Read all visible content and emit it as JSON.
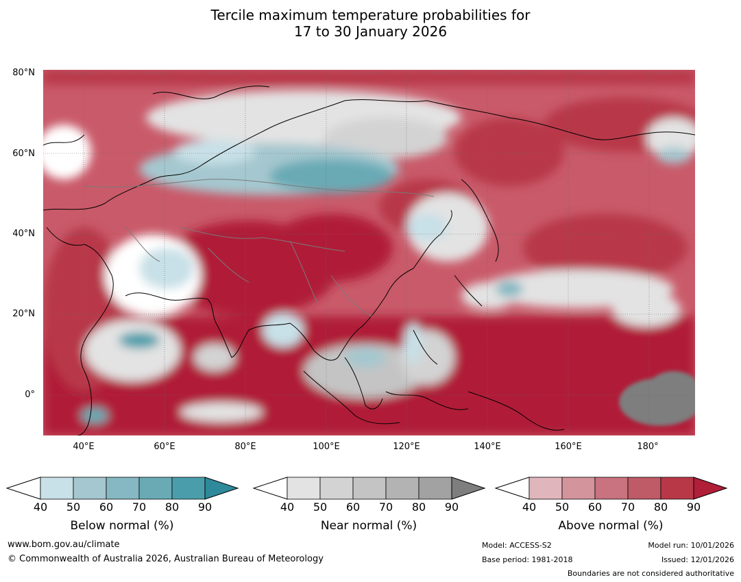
{
  "title": {
    "line1": "Tercile maximum temperature probabilities for",
    "line2": "17 to 30 January 2026"
  },
  "map": {
    "lat_labels": [
      "80°N",
      "60°N",
      "40°N",
      "20°N",
      "0°"
    ],
    "lon_labels": [
      "40°E",
      "60°E",
      "80°E",
      "100°E",
      "120°E",
      "140°E",
      "160°E",
      "180°"
    ],
    "extent": {
      "lon_min": 30,
      "lon_max": 191,
      "lat_min": -10,
      "lat_max": 80
    }
  },
  "colorbars": [
    {
      "name": "below",
      "title": "Below normal (%)",
      "ticks": [
        "40",
        "50",
        "60",
        "70",
        "80",
        "90"
      ],
      "colors": [
        "#c8e0e7",
        "#a5c7cf",
        "#85b8c2",
        "#69aab5",
        "#4a9eab",
        "#2e8a9a"
      ]
    },
    {
      "name": "near",
      "title": "Near normal (%)",
      "ticks": [
        "40",
        "50",
        "60",
        "70",
        "80",
        "90"
      ],
      "colors": [
        "#e3e3e3",
        "#d3d3d3",
        "#c4c4c4",
        "#b3b3b3",
        "#a2a2a2",
        "#7e7e7e"
      ]
    },
    {
      "name": "above",
      "title": "Above normal (%)",
      "ticks": [
        "40",
        "50",
        "60",
        "70",
        "80",
        "90"
      ],
      "colors": [
        "#e0b6bc",
        "#d3949c",
        "#c8737f",
        "#bf5a67",
        "#b83848",
        "#b01e38"
      ]
    }
  ],
  "footer": {
    "website": "www.bom.gov.au/climate",
    "copyright": "© Commonwealth of Australia 2026, Australian Bureau of Meteorology",
    "model": "Model: ACCESS-S2",
    "base_period": "Base period: 1981-2018",
    "model_run": "Model run: 10/01/2026",
    "issued": "Issued: 12/01/2026",
    "disclaimer": "Boundaries are not considered authoritative"
  }
}
